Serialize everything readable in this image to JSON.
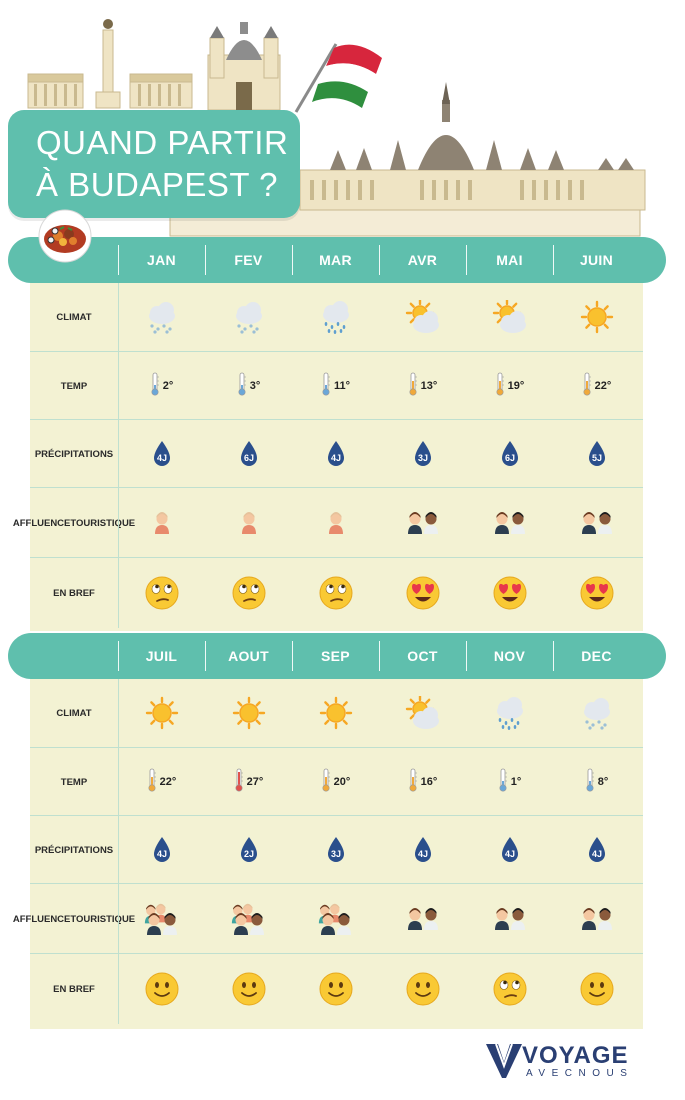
{
  "title": {
    "line1": "QUAND PARTIR",
    "line2": "À BUDAPEST ?"
  },
  "colors": {
    "teal": "#5fbfad",
    "cream": "#f3f2d3",
    "drop": "#2a4f8c",
    "brand": "#2a3f73"
  },
  "row_labels": {
    "climat": "CLIMAT",
    "temp": "TEMP",
    "precip": "PRÉCIPITATIONS",
    "affluence_1": "AFFLUENCE",
    "affluence_2": "TOURISTIQUE",
    "bref": "EN BREF"
  },
  "sections": [
    {
      "months": [
        "JAN",
        "FEV",
        "MAR",
        "AVR",
        "MAI",
        "JUIN"
      ],
      "climat": [
        "snow-cloud-icon",
        "snow-cloud-icon",
        "rain-cloud-icon",
        "sun-cloud-icon",
        "sun-cloud-icon",
        "sun-icon"
      ],
      "temp": [
        "2°",
        "3°",
        "11°",
        "13°",
        "19°",
        "22°"
      ],
      "temp_level": [
        "cold",
        "cold",
        "cold",
        "mild",
        "mild",
        "mild"
      ],
      "precip": [
        "4J",
        "6J",
        "4J",
        "3J",
        "6J",
        "5J"
      ],
      "affluence": [
        1,
        1,
        1,
        2,
        2,
        2
      ],
      "bref": [
        "rolling-eyes-face-icon",
        "rolling-eyes-face-icon",
        "rolling-eyes-face-icon",
        "heart-eyes-face-icon",
        "heart-eyes-face-icon",
        "heart-eyes-face-icon"
      ]
    },
    {
      "months": [
        "JUIL",
        "AOUT",
        "SEP",
        "OCT",
        "NOV",
        "DEC"
      ],
      "climat": [
        "sun-icon",
        "sun-icon",
        "sun-icon",
        "sun-cloud-icon",
        "rain-cloud-icon",
        "snow-cloud-icon"
      ],
      "temp": [
        "22°",
        "27°",
        "20°",
        "16°",
        "1°",
        "8°"
      ],
      "temp_level": [
        "mild",
        "hot",
        "mild",
        "mild",
        "cold",
        "cold"
      ],
      "precip": [
        "4J",
        "2J",
        "3J",
        "4J",
        "4J",
        "4J"
      ],
      "affluence": [
        3,
        3,
        3,
        2,
        2,
        2
      ],
      "bref": [
        "smile-face-icon",
        "smile-face-icon",
        "smile-face-icon",
        "smile-face-icon",
        "rolling-eyes-face-icon",
        "smile-face-icon"
      ]
    }
  ],
  "brand": {
    "name": "VOYAGE",
    "tagline": "AVECNOUS"
  }
}
